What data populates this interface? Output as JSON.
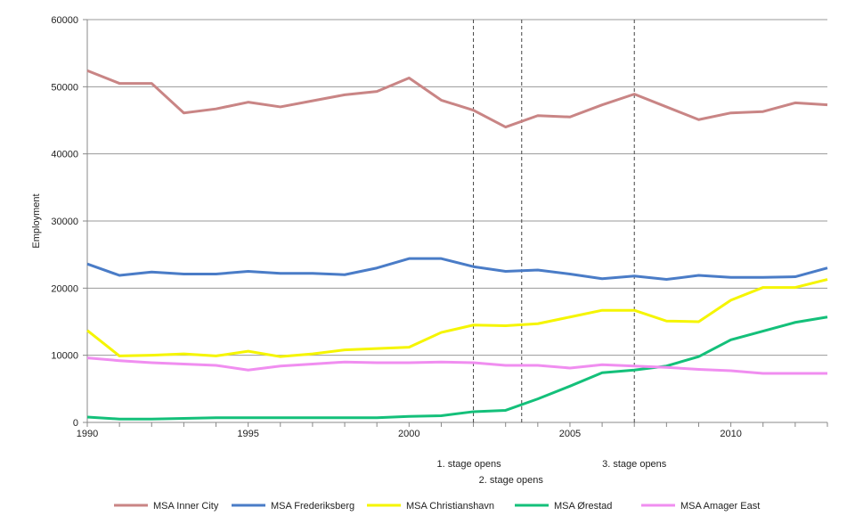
{
  "chart_data": {
    "type": "line",
    "title": "",
    "xlabel": "",
    "ylabel": "Employment",
    "xlim": [
      1990,
      2013
    ],
    "ylim": [
      0,
      60000
    ],
    "yticks": [
      0,
      10000,
      20000,
      30000,
      40000,
      50000,
      60000
    ],
    "xticks": [
      1990,
      1995,
      2000,
      2005,
      2010
    ],
    "grid": "horizontal",
    "legend_position": "bottom",
    "x": [
      1990,
      1991,
      1992,
      1993,
      1994,
      1995,
      1996,
      1997,
      1998,
      1999,
      2000,
      2001,
      2002,
      2003,
      2004,
      2005,
      2006,
      2007,
      2008,
      2009,
      2010,
      2011,
      2012,
      2013
    ],
    "series": [
      {
        "name": "MSA Inner City",
        "color": "#c98585",
        "values": [
          52400,
          50500,
          50500,
          46100,
          46700,
          47700,
          47000,
          47900,
          48800,
          49300,
          51300,
          48000,
          46500,
          44000,
          45700,
          45500,
          47300,
          48900,
          47000,
          45100,
          46100,
          46300,
          47600,
          47300
        ]
      },
      {
        "name": "MSA Frederiksberg",
        "color": "#4a7cc7",
        "values": [
          23600,
          21900,
          22400,
          22100,
          22100,
          22500,
          22200,
          22200,
          22000,
          23000,
          24400,
          24400,
          23200,
          22500,
          22700,
          22100,
          21400,
          21800,
          21300,
          21900,
          21600,
          21600,
          21700,
          23000
        ]
      },
      {
        "name": "MSA Christianshavn",
        "color": "#f5f500",
        "values": [
          13700,
          9900,
          10000,
          10200,
          9900,
          10600,
          9800,
          10200,
          10800,
          11000,
          11200,
          13400,
          14500,
          14400,
          14700,
          15700,
          16700,
          16700,
          15100,
          15000,
          18200,
          20100,
          20100,
          21300
        ]
      },
      {
        "name": "MSA Ørestad",
        "color": "#14c07a",
        "values": [
          800,
          500,
          500,
          600,
          700,
          700,
          700,
          700,
          700,
          700,
          900,
          1000,
          1600,
          1800,
          3500,
          5400,
          7400,
          7800,
          8400,
          9800,
          12300,
          13600,
          14900,
          15700
        ]
      },
      {
        "name": "MSA Amager East",
        "color": "#f08ef0",
        "values": [
          9600,
          9200,
          8900,
          8700,
          8500,
          7800,
          8400,
          8700,
          9000,
          8900,
          8900,
          9000,
          8900,
          8500,
          8500,
          8100,
          8600,
          8400,
          8200,
          7900,
          7700,
          7300,
          7300,
          7300
        ]
      }
    ],
    "annotations": [
      {
        "x": 2002,
        "label": "1. stage opens"
      },
      {
        "x": 2003.5,
        "label": "2. stage opens"
      },
      {
        "x": 2007,
        "label": "3. stage opens"
      }
    ]
  }
}
